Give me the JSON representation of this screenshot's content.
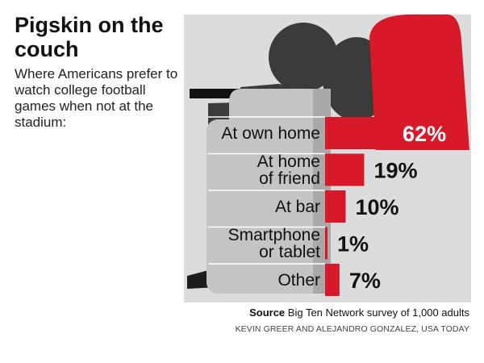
{
  "header": {
    "title": "Pigskin on the couch",
    "subtitle": "Where Americans prefer to watch college football games when not at the stadium:"
  },
  "footer": {
    "source_prefix": "Source",
    "source_text": "Big Ten Network survey of 1,000 adults",
    "credit": "KEVIN GREER AND ALEJANDRO GONZALEZ, USA TODAY"
  },
  "colors": {
    "accent": "#d7192a",
    "panel": "#dcdcdc",
    "couch": "#c4c4c4",
    "couch_dark": "#9a9a9a",
    "figure": "#3b3b3b",
    "text": "#111111"
  },
  "chart_data": {
    "type": "bar",
    "orientation": "horizontal",
    "title": "Pigskin on the couch",
    "subtitle": "Where Americans prefer to watch college football games when not at the stadium:",
    "categories": [
      [
        "At own home"
      ],
      [
        "At home",
        "of friend"
      ],
      [
        "At bar"
      ],
      [
        "Smartphone",
        "or tablet"
      ],
      [
        "Other"
      ]
    ],
    "values": [
      62,
      19,
      10,
      1,
      7
    ],
    "value_labels": [
      "62%",
      "19%",
      "10%",
      "1%",
      "7%"
    ],
    "unit": "%",
    "xlim": [
      0,
      100
    ],
    "grid": false,
    "legend": "none"
  }
}
